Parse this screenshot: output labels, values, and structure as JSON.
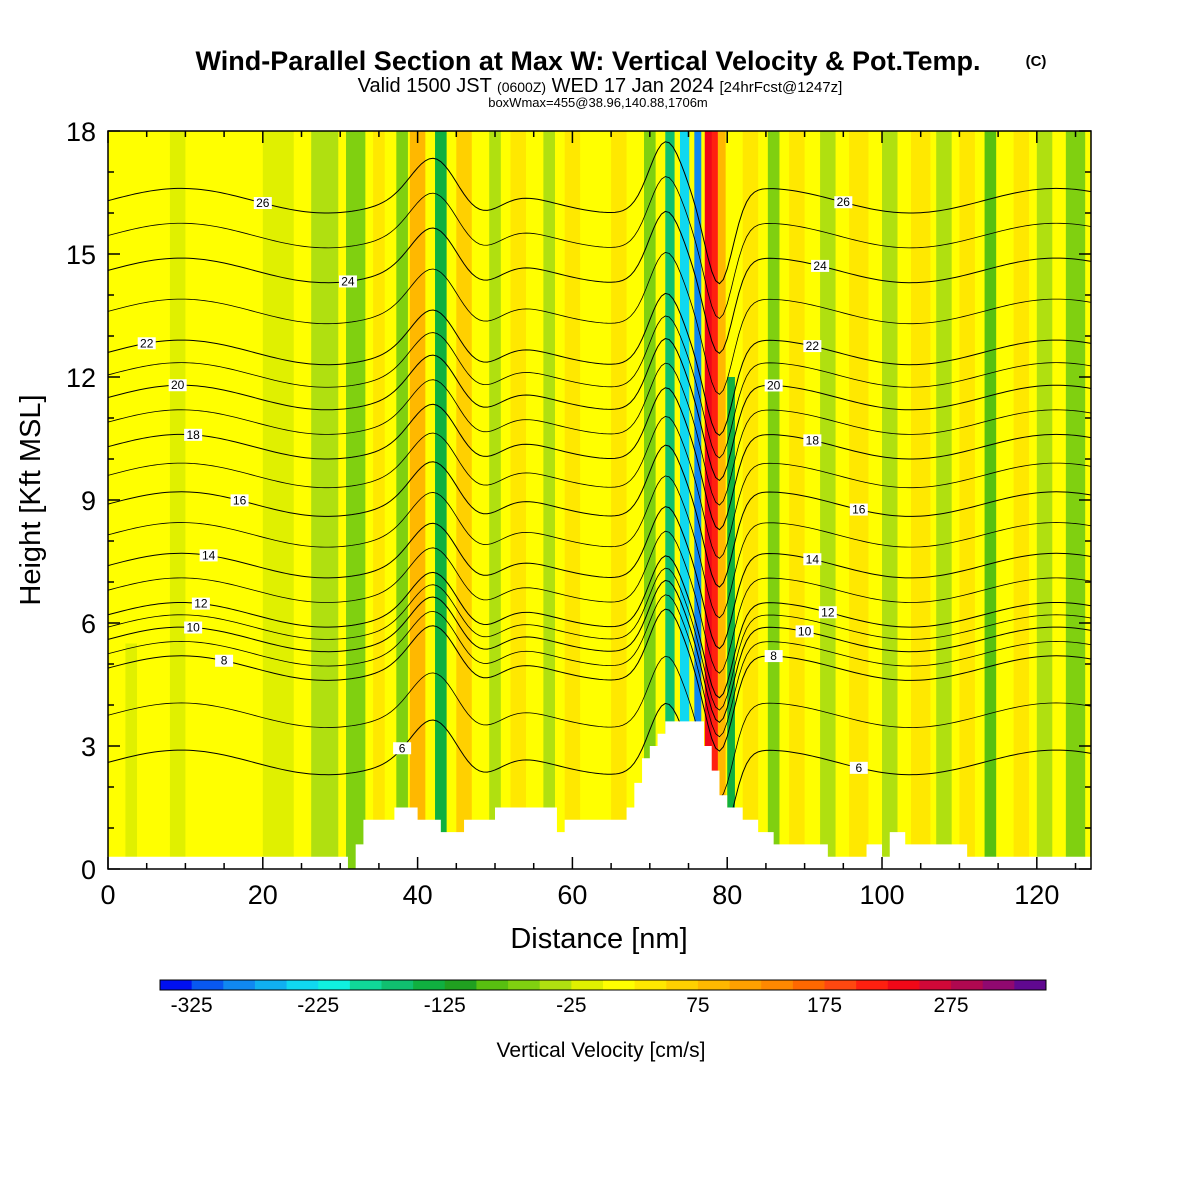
{
  "title": {
    "main": "Wind-Parallel Section at Max W: Vertical Velocity & Pot.Temp.",
    "copyright": "(C)",
    "valid_prefix": "Valid 1500 JST",
    "valid_zulu": "(0600Z)",
    "valid_date": "WED 17 Jan 2024",
    "forecast": "[24hrFcst@1247z]",
    "boxline": "boxWmax=455@38.96,140.88,1706m"
  },
  "colorbar_label": "Vertical Velocity [cm/s]",
  "chart_data": {
    "type": "contour",
    "xlabel": "Distance [nm]",
    "ylabel": "Height [Kft MSL]",
    "xlim": [
      0,
      127
    ],
    "ylim": [
      0,
      18
    ],
    "x_ticks": [
      0,
      20,
      40,
      60,
      80,
      100,
      120
    ],
    "y_ticks": [
      0,
      3,
      6,
      9,
      12,
      15,
      18
    ],
    "shaded_field": "Vertical Velocity [cm/s]",
    "contour_field": "Potential temperature",
    "colorbar": {
      "levels": [
        -350,
        -325,
        -300,
        -275,
        -250,
        -225,
        -200,
        -175,
        -150,
        -125,
        -100,
        -75,
        -50,
        -25,
        0,
        25,
        50,
        75,
        100,
        125,
        150,
        175,
        200,
        225,
        250,
        275,
        300,
        325,
        350
      ],
      "tick_labels": [
        "-325",
        "-225",
        "-125",
        "-25",
        "75",
        "175",
        "275"
      ],
      "colors": [
        "#0010f0",
        "#0858f0",
        "#1088f0",
        "#10b0f0",
        "#10d8f0",
        "#10f0e0",
        "#10d898",
        "#10c070",
        "#10b040",
        "#20a020",
        "#58c010",
        "#80d010",
        "#b0e010",
        "#e0f000",
        "#ffff00",
        "#ffe800",
        "#ffd000",
        "#ffb800",
        "#ffa000",
        "#ff8800",
        "#ff6800",
        "#ff4810",
        "#ff2010",
        "#f00818",
        "#d00838",
        "#b00850",
        "#900870",
        "#600890"
      ]
    },
    "velocity_bands": [
      {
        "x": 0,
        "w": 1.5,
        "top": 18,
        "value": 10
      },
      {
        "x": 3,
        "w": 1.5,
        "top": 5.5,
        "value": -25
      },
      {
        "x": 9,
        "w": 2.0,
        "top": 18,
        "value": -10
      },
      {
        "x": 22,
        "w": 4.0,
        "top": 18,
        "value": -15
      },
      {
        "x": 28,
        "w": 3.5,
        "top": 18,
        "value": -30
      },
      {
        "x": 32,
        "w": 2.5,
        "top": 18,
        "value": -70
      },
      {
        "x": 35,
        "w": 1.5,
        "top": 18,
        "value": 40
      },
      {
        "x": 38,
        "w": 1.5,
        "top": 18,
        "value": -60
      },
      {
        "x": 40,
        "w": 2.0,
        "top": 18,
        "value": 85
      },
      {
        "x": 43,
        "w": 1.5,
        "top": 18,
        "value": -130
      },
      {
        "x": 46,
        "w": 2.0,
        "top": 18,
        "value": 55
      },
      {
        "x": 50,
        "w": 1.5,
        "top": 18,
        "value": -30
      },
      {
        "x": 53,
        "w": 2.0,
        "top": 18,
        "value": 40
      },
      {
        "x": 57,
        "w": 1.5,
        "top": 18,
        "value": -40
      },
      {
        "x": 60,
        "w": 2.0,
        "top": 18,
        "value": 30
      },
      {
        "x": 66,
        "w": 2.0,
        "top": 18,
        "value": 40
      },
      {
        "x": 70,
        "w": 1.5,
        "top": 18,
        "value": -60
      },
      {
        "x": 72.6,
        "w": 1.2,
        "top": 18,
        "value": -160
      },
      {
        "x": 74.5,
        "w": 1.2,
        "top": 18,
        "value": -240
      },
      {
        "x": 76.2,
        "w": 0.9,
        "top": 18,
        "value": -300
      },
      {
        "x": 77.6,
        "w": 1.0,
        "top": 18,
        "value": 240
      },
      {
        "x": 78.4,
        "w": 0.8,
        "top": 18,
        "value": 200
      },
      {
        "x": 79.3,
        "w": 1.0,
        "top": 18,
        "value": 80
      },
      {
        "x": 80.5,
        "w": 1.0,
        "top": 12,
        "value": -130
      },
      {
        "x": 83,
        "w": 2.0,
        "top": 18,
        "value": 40
      },
      {
        "x": 86,
        "w": 1.5,
        "top": 18,
        "value": -70
      },
      {
        "x": 89,
        "w": 2.0,
        "top": 18,
        "value": 40
      },
      {
        "x": 93,
        "w": 2.0,
        "top": 18,
        "value": -40
      },
      {
        "x": 97,
        "w": 2.5,
        "top": 18,
        "value": 35
      },
      {
        "x": 101,
        "w": 2.0,
        "top": 18,
        "value": -30
      },
      {
        "x": 105,
        "w": 2.5,
        "top": 18,
        "value": 30
      },
      {
        "x": 108,
        "w": 2.0,
        "top": 18,
        "value": -50
      },
      {
        "x": 111,
        "w": 2.0,
        "top": 18,
        "value": 40
      },
      {
        "x": 114,
        "w": 1.5,
        "top": 18,
        "value": -90
      },
      {
        "x": 118,
        "w": 2.0,
        "top": 18,
        "value": 30
      },
      {
        "x": 121,
        "w": 2.0,
        "top": 18,
        "value": -30
      },
      {
        "x": 125,
        "w": 2.5,
        "top": 18,
        "value": -60
      }
    ],
    "terrain": [
      [
        0,
        0.3
      ],
      [
        30,
        0.3
      ],
      [
        31,
        0.0
      ],
      [
        32,
        0.6
      ],
      [
        33,
        1.2
      ],
      [
        36,
        1.2
      ],
      [
        37,
        1.5
      ],
      [
        39,
        1.5
      ],
      [
        40,
        1.2
      ],
      [
        41,
        1.2
      ],
      [
        42,
        1.2
      ],
      [
        43,
        0.9
      ],
      [
        45,
        0.9
      ],
      [
        46,
        1.2
      ],
      [
        49,
        1.2
      ],
      [
        50,
        1.5
      ],
      [
        57,
        1.5
      ],
      [
        58,
        0.9
      ],
      [
        59,
        1.2
      ],
      [
        66,
        1.2
      ],
      [
        67,
        1.5
      ],
      [
        68,
        2.1
      ],
      [
        69,
        2.7
      ],
      [
        70,
        3.0
      ],
      [
        71,
        3.3
      ],
      [
        72,
        3.6
      ],
      [
        76,
        3.6
      ],
      [
        77,
        3.0
      ],
      [
        78,
        2.4
      ],
      [
        79,
        1.8
      ],
      [
        80,
        1.5
      ],
      [
        82,
        1.2
      ],
      [
        84,
        0.9
      ],
      [
        86,
        0.6
      ],
      [
        92,
        0.6
      ],
      [
        93,
        0.3
      ],
      [
        97,
        0.3
      ],
      [
        98,
        0.6
      ],
      [
        100,
        0.3
      ],
      [
        101,
        0.9
      ],
      [
        103,
        0.6
      ],
      [
        110,
        0.6
      ],
      [
        111,
        0.3
      ],
      [
        127,
        0.3
      ]
    ],
    "theta_contours": [
      {
        "label": "6",
        "y_left": 2.6,
        "label_x": 38,
        "label2_x": 97
      },
      {
        "label": "8",
        "y_left": 4.9,
        "label_x": 15,
        "label2_x": 86
      },
      {
        "label": "10",
        "y_left": 5.6,
        "label_x": 11,
        "label2_x": 90
      },
      {
        "label": "12",
        "y_left": 6.2,
        "label_x": 12,
        "label2_x": 93
      },
      {
        "label": "14",
        "y_left": 7.4,
        "label_x": 13,
        "label2_x": 91
      },
      {
        "label": "16",
        "y_left": 8.9,
        "label_x": 17,
        "label2_x": 97
      },
      {
        "label": "18",
        "y_left": 10.3,
        "label_x": 11,
        "label2_x": 91
      },
      {
        "label": "20",
        "y_left": 11.5,
        "label_x": 9,
        "label2_x": 86
      },
      {
        "label": "22",
        "y_left": 12.6,
        "label_x": 5,
        "label2_x": 91
      },
      {
        "label": "24",
        "y_left": 14.6,
        "label_x": 31,
        "label2_x": 92
      },
      {
        "label": "26",
        "y_left": 16.3,
        "label_x": 20,
        "label2_x": 95
      }
    ]
  }
}
